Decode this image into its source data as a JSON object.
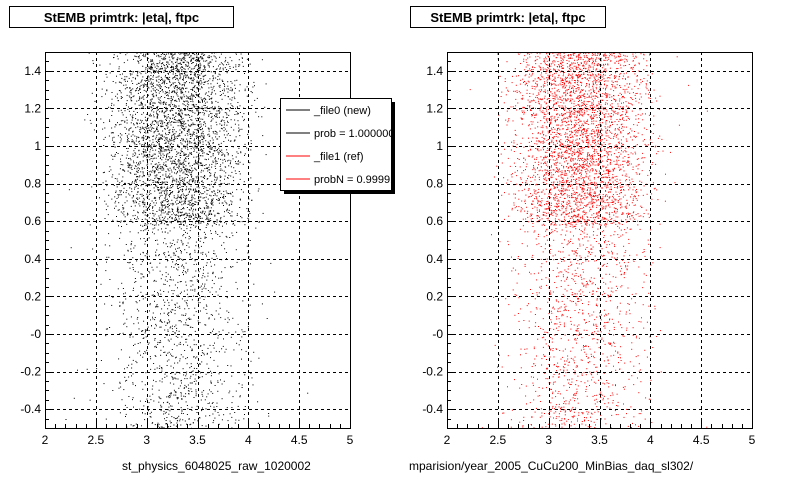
{
  "titles": {
    "left": "StEMB primtrk: |eta|, ftpc",
    "right": "StEMB primtrk: |eta|, ftpc"
  },
  "legend": {
    "entries": [
      {
        "label": "_file0 (new)",
        "color": "#000000"
      },
      {
        "label": "prob = 1.000000",
        "color": "#000000"
      },
      {
        "label": "_file1 (ref)",
        "color": "#ff0000"
      },
      {
        "label": "probN = 0.99991",
        "color": "#ff0000"
      }
    ]
  },
  "file_labels": {
    "left": "st_physics_6048025_raw_1020002",
    "right": "mparision/year_2005_CuCu200_MinBias_daq_sl302/"
  },
  "chart_data": [
    {
      "type": "scatter",
      "title": "StEMB primtrk: |eta|, ftpc",
      "xlim": [
        2,
        5
      ],
      "ylim": [
        -0.5,
        1.5
      ],
      "xticks": [
        "2",
        "2.5",
        "3",
        "3.5",
        "4",
        "4.5",
        "5"
      ],
      "yticks": [
        "-0.4",
        "-0.2",
        "-0",
        "0.2",
        "0.4",
        "0.6",
        "0.8",
        "1",
        "1.2",
        "1.4"
      ],
      "grid": true,
      "marker_color": "#000000",
      "dense_region": {
        "x": [
          2.55,
          4.05
        ],
        "y": [
          0.58,
          1.5
        ]
      },
      "sparse_region": {
        "x": [
          2.55,
          4.05
        ],
        "y": [
          -0.5,
          0.58
        ]
      }
    },
    {
      "type": "scatter",
      "title": "StEMB primtrk: |eta|, ftpc",
      "xlim": [
        2,
        5
      ],
      "ylim": [
        -0.5,
        1.5
      ],
      "xticks": [
        "2",
        "2.5",
        "3",
        "3.5",
        "4",
        "4.5",
        "5"
      ],
      "yticks": [
        "-0.4",
        "-0.2",
        "-0",
        "0.2",
        "0.4",
        "0.6",
        "0.8",
        "1",
        "1.2",
        "1.4"
      ],
      "grid": true,
      "marker_color": "#ff0000",
      "dense_region": {
        "x": [
          2.55,
          4.05
        ],
        "y": [
          0.58,
          1.5
        ]
      },
      "sparse_region": {
        "x": [
          2.55,
          4.05
        ],
        "y": [
          -0.5,
          0.58
        ]
      }
    }
  ]
}
